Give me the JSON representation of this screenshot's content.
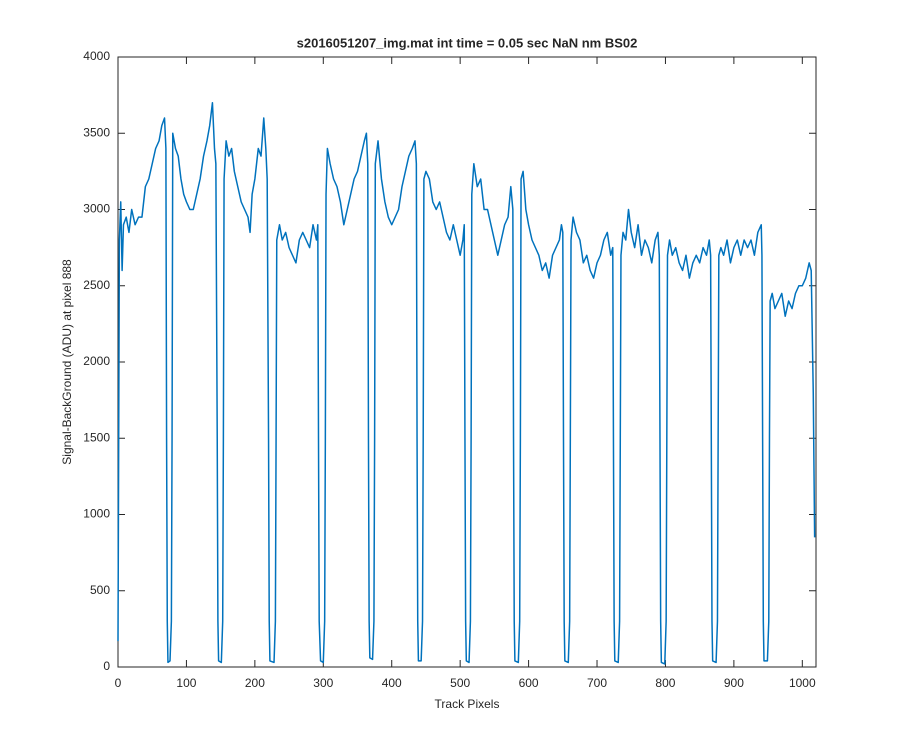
{
  "chart_data": {
    "type": "line",
    "title": "s2016051207_img.mat int time = 0.05 sec  NaN nm BS02",
    "x_label": "Track Pixels",
    "y_label": "Signal-BackGround (ADU) at pixel 888",
    "color": "#0072bd",
    "xlim": [
      0,
      1020
    ],
    "xticks": [
      0,
      100,
      200,
      300,
      400,
      500,
      600,
      700,
      800,
      900,
      1000
    ],
    "ylim": [
      0,
      4000
    ],
    "yticks": [
      0,
      500,
      1000,
      1500,
      2000,
      2500,
      3000,
      3500,
      4000
    ],
    "grid": false,
    "x": [
      0,
      2,
      4,
      6,
      8,
      12,
      16,
      20,
      25,
      30,
      35,
      40,
      45,
      50,
      55,
      60,
      64,
      68,
      70,
      71,
      72,
      73,
      76,
      78,
      79,
      80,
      84,
      88,
      92,
      96,
      100,
      105,
      110,
      115,
      120,
      125,
      130,
      134,
      138,
      141,
      143,
      145,
      146,
      147,
      151,
      153,
      154,
      155,
      158,
      162,
      166,
      170,
      175,
      180,
      185,
      190,
      193,
      196,
      200,
      205,
      209,
      213,
      216,
      218,
      220,
      221,
      222,
      228,
      230,
      231,
      232,
      236,
      240,
      245,
      250,
      255,
      260,
      265,
      270,
      275,
      280,
      285,
      290,
      292,
      293,
      294,
      296,
      300,
      302,
      303,
      304,
      306,
      310,
      315,
      320,
      325,
      330,
      335,
      340,
      345,
      350,
      355,
      360,
      363,
      365,
      366,
      367,
      368,
      372,
      374,
      375,
      376,
      380,
      385,
      390,
      395,
      400,
      405,
      410,
      415,
      420,
      425,
      430,
      434,
      436,
      437,
      438,
      439,
      443,
      445,
      446,
      447,
      450,
      455,
      460,
      465,
      470,
      475,
      480,
      485,
      490,
      495,
      500,
      504,
      506,
      507,
      508,
      509,
      513,
      515,
      516,
      517,
      520,
      525,
      530,
      535,
      540,
      545,
      550,
      555,
      560,
      565,
      570,
      574,
      577,
      578,
      579,
      580,
      585,
      587,
      588,
      589,
      592,
      596,
      600,
      605,
      610,
      615,
      620,
      625,
      630,
      635,
      640,
      645,
      648,
      650,
      651,
      652,
      653,
      658,
      660,
      661,
      662,
      665,
      670,
      675,
      680,
      685,
      690,
      695,
      700,
      705,
      710,
      715,
      720,
      723,
      724,
      725,
      726,
      731,
      733,
      734,
      735,
      738,
      742,
      746,
      750,
      755,
      760,
      765,
      770,
      775,
      780,
      785,
      789,
      791,
      792,
      793,
      794,
      799,
      801,
      802,
      803,
      806,
      810,
      815,
      820,
      825,
      830,
      835,
      840,
      845,
      850,
      855,
      860,
      864,
      866,
      867,
      868,
      869,
      874,
      876,
      877,
      878,
      881,
      885,
      890,
      895,
      900,
      905,
      910,
      915,
      920,
      925,
      930,
      935,
      940,
      941,
      942,
      943,
      944,
      949,
      951,
      952,
      953,
      956,
      960,
      965,
      970,
      975,
      980,
      985,
      990,
      995,
      1000,
      1005,
      1010,
      1013,
      1016,
      1018
    ],
    "values": [
      170,
      2800,
      3050,
      2600,
      2900,
      2950,
      2850,
      3000,
      2900,
      2950,
      2950,
      3150,
      3200,
      3300,
      3400,
      3450,
      3550,
      3600,
      3400,
      1500,
      300,
      30,
      40,
      300,
      1500,
      3500,
      3400,
      3350,
      3200,
      3100,
      3050,
      3000,
      3000,
      3100,
      3200,
      3350,
      3450,
      3550,
      3700,
      3400,
      3300,
      1500,
      300,
      40,
      30,
      300,
      1500,
      3200,
      3450,
      3350,
      3400,
      3250,
      3150,
      3050,
      3000,
      2950,
      2850,
      3100,
      3200,
      3400,
      3350,
      3600,
      3400,
      3200,
      1500,
      300,
      40,
      30,
      300,
      1500,
      2800,
      2900,
      2800,
      2850,
      2750,
      2700,
      2650,
      2800,
      2850,
      2800,
      2750,
      2900,
      2800,
      2900,
      1500,
      300,
      40,
      30,
      300,
      1500,
      3100,
      3400,
      3300,
      3200,
      3150,
      3050,
      2900,
      3000,
      3100,
      3200,
      3250,
      3350,
      3450,
      3500,
      3300,
      1500,
      300,
      60,
      50,
      300,
      1500,
      3300,
      3450,
      3200,
      3050,
      2950,
      2900,
      2950,
      3000,
      3150,
      3250,
      3350,
      3400,
      3450,
      3300,
      1500,
      300,
      40,
      40,
      300,
      1500,
      3200,
      3250,
      3200,
      3050,
      3000,
      3050,
      2950,
      2850,
      2800,
      2900,
      2800,
      2700,
      2800,
      2900,
      1500,
      300,
      40,
      30,
      300,
      1500,
      3100,
      3300,
      3150,
      3200,
      3000,
      3000,
      2900,
      2800,
      2700,
      2800,
      2900,
      2950,
      3150,
      3000,
      1500,
      300,
      40,
      30,
      300,
      1500,
      3200,
      3250,
      3000,
      2900,
      2800,
      2750,
      2700,
      2600,
      2650,
      2550,
      2700,
      2750,
      2800,
      2900,
      2850,
      1500,
      300,
      40,
      30,
      300,
      1500,
      2800,
      2950,
      2850,
      2800,
      2650,
      2700,
      2600,
      2550,
      2650,
      2700,
      2800,
      2850,
      2700,
      2750,
      1500,
      300,
      40,
      30,
      300,
      1500,
      2700,
      2850,
      2800,
      3000,
      2850,
      2750,
      2900,
      2700,
      2800,
      2750,
      2650,
      2800,
      2850,
      2700,
      1500,
      300,
      30,
      20,
      300,
      1500,
      2700,
      2800,
      2700,
      2750,
      2650,
      2600,
      2700,
      2550,
      2650,
      2700,
      2650,
      2750,
      2700,
      2800,
      2700,
      1500,
      300,
      40,
      30,
      300,
      1500,
      2700,
      2750,
      2700,
      2800,
      2650,
      2750,
      2800,
      2700,
      2800,
      2750,
      2800,
      2700,
      2850,
      2900,
      2700,
      1500,
      300,
      40,
      40,
      300,
      1500,
      2400,
      2450,
      2350,
      2400,
      2450,
      2300,
      2400,
      2350,
      2450,
      2500,
      2500,
      2550,
      2650,
      2600,
      1800,
      850
    ]
  }
}
